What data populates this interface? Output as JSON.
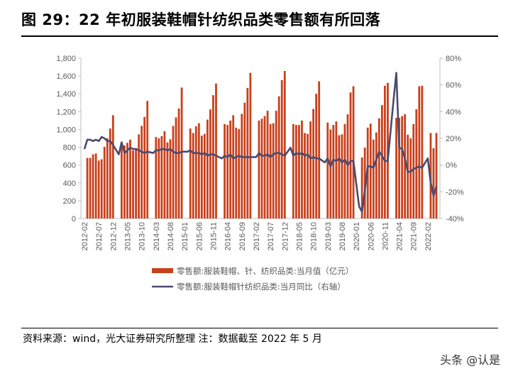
{
  "title": "图 29：22 年初服装鞋帽针纺织品类零售额有所回落",
  "source": "资料来源：wind，光大证券研究所整理  注：数据截至 2022 年 5 月",
  "watermark": "头条 @认是",
  "colors": {
    "bar": "#C8401C",
    "line": "#4A4A6E",
    "axis": "#BFBFBF",
    "tick_text": "#595959"
  },
  "chart_data": {
    "type": "bar+line",
    "legend_position": "bottom",
    "grid": false,
    "y_left": {
      "min": 0,
      "max": 1800,
      "step": 200,
      "tick_labels": [
        "0",
        "200",
        "400",
        "600",
        "800",
        "1,000",
        "1,200",
        "1,400",
        "1,600",
        "1,800"
      ]
    },
    "y_right": {
      "min": -40,
      "max": 80,
      "step": 20,
      "tick_labels": [
        "-40%",
        "-20%",
        "0%",
        "20%",
        "40%",
        "60%",
        "80%"
      ]
    },
    "x_tick_every": 5,
    "categories": [
      "2012-02",
      "2012-03",
      "2012-04",
      "2012-05",
      "2012-06",
      "2012-07",
      "2012-08",
      "2012-09",
      "2012-10",
      "2012-11",
      "2012-12",
      "2013-01",
      "2013-02",
      "2013-03",
      "2013-04",
      "2013-05",
      "2013-06",
      "2013-07",
      "2013-08",
      "2013-09",
      "2013-10",
      "2013-11",
      "2013-12",
      "2014-01",
      "2014-02",
      "2014-03",
      "2014-04",
      "2014-05",
      "2014-06",
      "2014-07",
      "2014-08",
      "2014-09",
      "2014-10",
      "2014-11",
      "2014-12",
      "2015-01",
      "2015-02",
      "2015-03",
      "2015-04",
      "2015-05",
      "2015-06",
      "2015-07",
      "2015-08",
      "2015-09",
      "2015-10",
      "2015-11",
      "2015-12",
      "2016-01",
      "2016-02",
      "2016-03",
      "2016-04",
      "2016-05",
      "2016-06",
      "2016-07",
      "2016-08",
      "2016-09",
      "2016-10",
      "2016-11",
      "2016-12",
      "2017-01",
      "2017-02",
      "2017-03",
      "2017-04",
      "2017-05",
      "2017-06",
      "2017-07",
      "2017-08",
      "2017-09",
      "2017-10",
      "2017-11",
      "2017-12",
      "2018-01",
      "2018-02",
      "2018-03",
      "2018-04",
      "2018-05",
      "2018-06",
      "2018-07",
      "2018-08",
      "2018-09",
      "2018-10",
      "2018-11",
      "2018-12",
      "2019-01",
      "2019-02",
      "2019-03",
      "2019-04",
      "2019-05",
      "2019-06",
      "2019-07",
      "2019-08",
      "2019-09",
      "2019-10",
      "2019-11",
      "2019-12",
      "2020-01",
      "2020-02",
      "2020-03",
      "2020-04",
      "2020-05",
      "2020-06",
      "2020-07",
      "2020-08",
      "2020-09",
      "2020-10",
      "2020-11",
      "2020-12",
      "2021-01",
      "2021-02",
      "2021-03",
      "2021-04",
      "2021-05",
      "2021-06",
      "2021-07",
      "2021-08",
      "2021-09",
      "2021-10",
      "2021-11",
      "2021-12",
      "2022-01",
      "2022-02",
      "2022-03",
      "2022-04",
      "2022-05"
    ],
    "series": [
      {
        "name": "零售额:服装鞋帽、针、纺织品类:当月值（亿元）",
        "type": "bar",
        "axis": "left",
        "values": [
          null,
          680,
          680,
          720,
          730,
          650,
          665,
          805,
          900,
          1010,
          1160,
          null,
          null,
          860,
          820,
          850,
          885,
          765,
          790,
          945,
          1040,
          1140,
          1320,
          null,
          null,
          915,
          900,
          925,
          980,
          855,
          890,
          1040,
          1135,
          1235,
          1470,
          null,
          null,
          1010,
          960,
          1035,
          1070,
          930,
          950,
          1110,
          1225,
          1385,
          1515,
          null,
          null,
          1060,
          1050,
          1100,
          1160,
          1020,
          1005,
          1175,
          1300,
          1465,
          1635,
          null,
          null,
          1100,
          1120,
          1150,
          1210,
          1060,
          1070,
          1210,
          1372,
          1555,
          1656,
          null,
          null,
          1060,
          1050,
          1050,
          1100,
          960,
          950,
          1090,
          1230,
          1400,
          1540,
          null,
          null,
          1077,
          1000,
          1050,
          1090,
          935,
          945,
          1060,
          1170,
          1415,
          1485,
          null,
          null,
          685,
          796,
          1020,
          1065,
          886,
          966,
          1125,
          1274,
          1491,
          1523,
          null,
          null,
          1130,
          1130,
          1150,
          1170,
          940,
          900,
          1060,
          1226,
          1485,
          1490,
          null,
          null,
          960,
          790,
          960
        ]
      },
      {
        "name": "零售额:服装鞋帽针纺织品类:当月同比（右轴）",
        "type": "line",
        "axis": "right",
        "unit": "%",
        "values": [
          12,
          19,
          19,
          18,
          19,
          18,
          21,
          20,
          18,
          18,
          15,
          null,
          8,
          17,
          9,
          11,
          13,
          12,
          12,
          11,
          10,
          9,
          10,
          null,
          9,
          11,
          11,
          12,
          12,
          11,
          12,
          10,
          9,
          9,
          10,
          null,
          10,
          11,
          9,
          9,
          9,
          8,
          9,
          7,
          8,
          8,
          7,
          null,
          5,
          7,
          6,
          8,
          5,
          6,
          7,
          6,
          6,
          6,
          6,
          null,
          6,
          9,
          7,
          7,
          8,
          6,
          8,
          9,
          9,
          8,
          7,
          null,
          13,
          7,
          9,
          8,
          9,
          7,
          8,
          5,
          6,
          5,
          5,
          null,
          2,
          5,
          -1,
          4,
          3,
          5,
          2,
          4,
          0,
          3,
          3,
          null,
          -31,
          -35,
          -19,
          -1,
          -1,
          -2,
          4,
          10,
          7,
          3,
          3,
          null,
          48,
          69,
          13,
          12,
          5,
          -5,
          -5,
          -3,
          -2,
          -1,
          -2,
          null,
          5,
          -13,
          -23,
          -16
        ]
      }
    ]
  }
}
